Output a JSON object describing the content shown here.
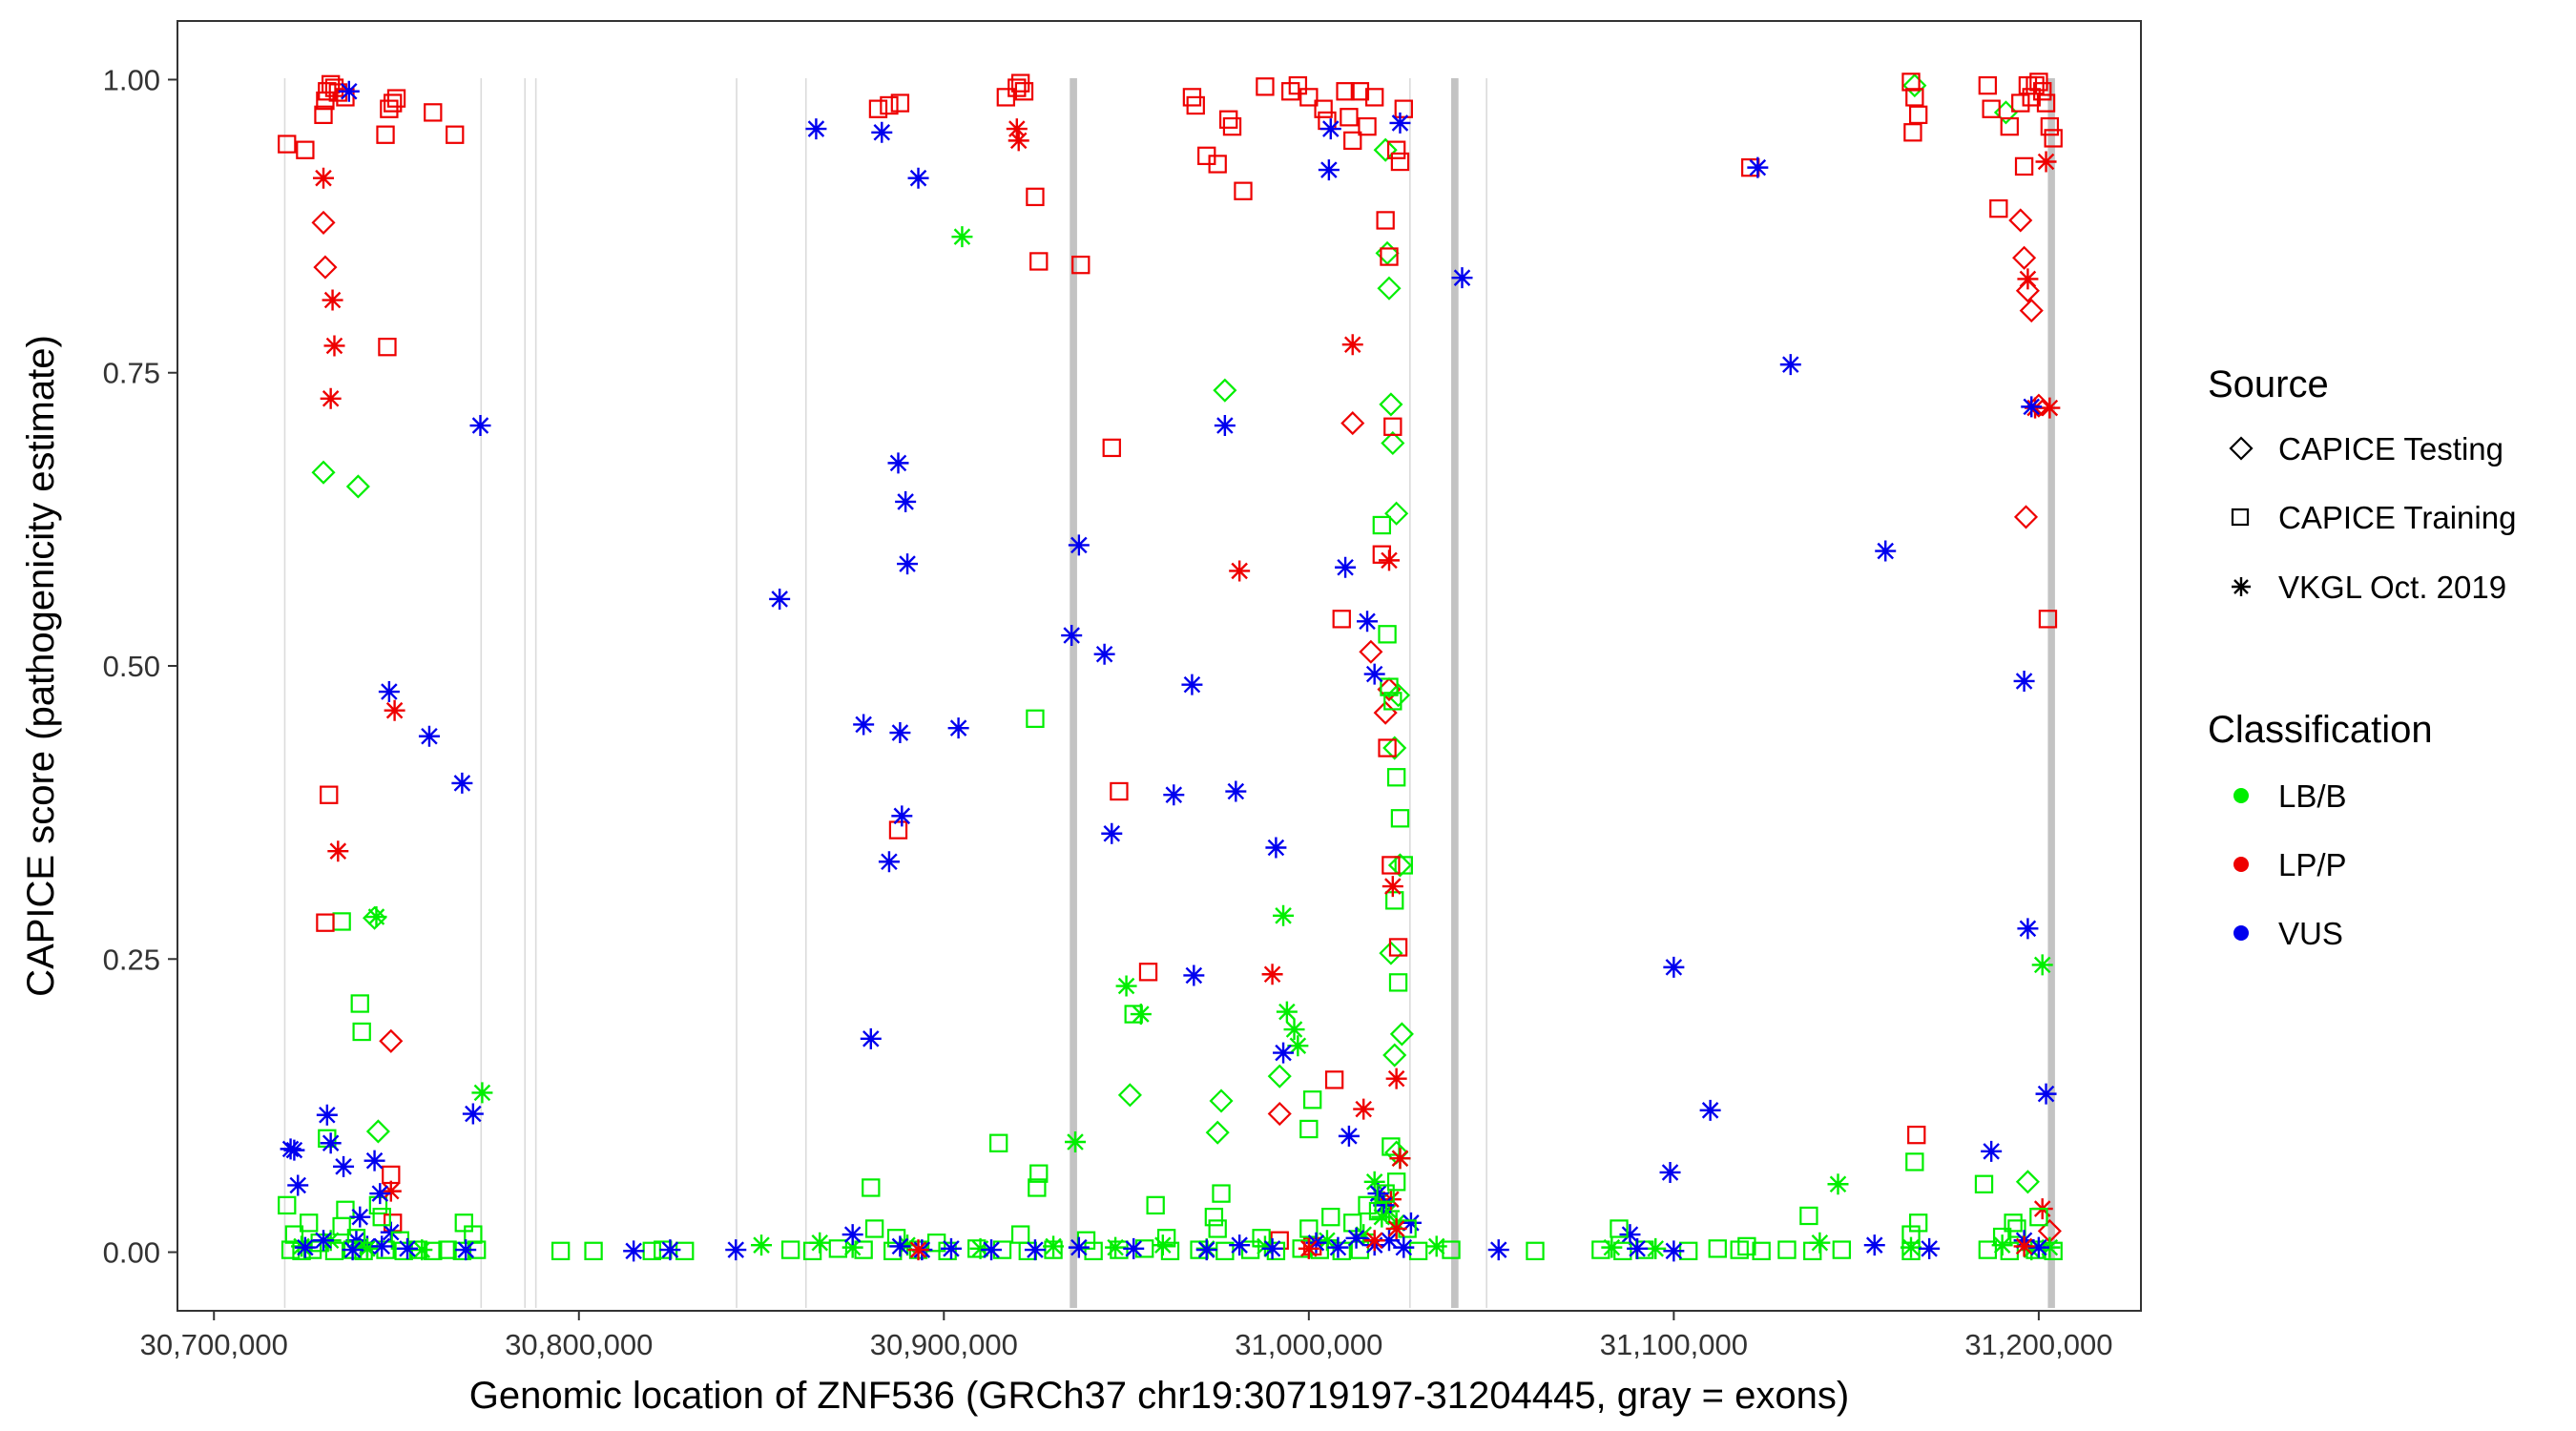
{
  "chart_data": {
    "type": "scatter",
    "title": "",
    "xlabel": "Genomic location of ZNF536 (GRCh37 chr19:30719197-31204445, gray = exons)",
    "ylabel": "CAPICE score (pathogenicity estimate)",
    "xlim": [
      30690000,
      31228000
    ],
    "ylim": [
      -0.05,
      1.05
    ],
    "grid": false,
    "x_ticks": [
      30700000,
      30800000,
      30900000,
      31000000,
      31100000,
      31200000
    ],
    "x_tick_labels": [
      "30,700,000",
      "30,800,000",
      "30,900,000",
      "31,000,000",
      "31,100,000",
      "31,200,000"
    ],
    "y_ticks": [
      0,
      0.25,
      0.5,
      0.75,
      1.0
    ],
    "y_tick_labels": [
      "0.00",
      "0.25",
      "0.50",
      "0.75",
      "1.00"
    ],
    "exons": [
      {
        "start": 30719197,
        "end": 30719300
      },
      {
        "start": 30773000,
        "end": 30773100
      },
      {
        "start": 30785000,
        "end": 30785100
      },
      {
        "start": 30788000,
        "end": 30788100
      },
      {
        "start": 30843000,
        "end": 30843100
      },
      {
        "start": 30862000,
        "end": 30862100
      },
      {
        "start": 30934500,
        "end": 30936500
      },
      {
        "start": 31027500,
        "end": 31027700
      },
      {
        "start": 31039000,
        "end": 31041000
      },
      {
        "start": 31048500,
        "end": 31048700
      },
      {
        "start": 31202500,
        "end": 31204445
      }
    ],
    "legend": {
      "source": {
        "title": "Source",
        "items": [
          {
            "label": "CAPICE Testing",
            "shape": "diamond"
          },
          {
            "label": "CAPICE Training",
            "shape": "square"
          },
          {
            "label": "VKGL Oct. 2019",
            "shape": "asterisk"
          }
        ]
      },
      "classification": {
        "title": "Classification",
        "items": [
          {
            "label": "LB/B",
            "color": "#00ee00"
          },
          {
            "label": "LP/P",
            "color": "#ee0000"
          },
          {
            "label": "VUS",
            "color": "#0000ee"
          }
        ]
      }
    },
    "series": [
      {
        "name": "CAPICE Testing / LB/B",
        "shape": "diamond",
        "color": "#00ee00",
        "x": [
          30730000,
          30739500,
          30744000,
          30745000,
          30951000,
          30975000,
          30976000,
          30977000,
          30992000,
          31021500,
          31022000,
          31022500,
          31023000,
          31024000,
          31024500,
          31025000,
          31025500,
          31023500,
          31166000,
          31191000,
          31021000,
          31022500,
          31024000,
          31197000,
          31023500
        ],
        "y": [
          0.665,
          0.653,
          0.285,
          0.103,
          0.134,
          0.102,
          0.129,
          0.735,
          0.15,
          0.852,
          0.822,
          0.723,
          0.69,
          0.63,
          0.475,
          0.33,
          0.186,
          0.168,
          0.995,
          0.972,
          0.94,
          0.255,
          0.085,
          0.06,
          0.43
        ]
      },
      {
        "name": "CAPICE Testing / LP/P",
        "shape": "diamond",
        "color": "#ee0000",
        "x": [
          30730000,
          30730500,
          30748500,
          30992000,
          31012000,
          31017000,
          31021000,
          31022000,
          31195000,
          31196000,
          31197000,
          31198000,
          31196500,
          31200000,
          31203000
        ],
        "y": [
          0.878,
          0.84,
          0.18,
          0.118,
          0.707,
          0.512,
          0.46,
          0.48,
          0.88,
          0.848,
          0.82,
          0.803,
          0.627,
          0.722,
          0.018
        ]
      },
      {
        "name": "CAPICE Training / LB/B",
        "shape": "square",
        "color": "#00ee00",
        "x": [
          30720000,
          30731000,
          30735000,
          30740000,
          30740500,
          30736000,
          30745000,
          30768500,
          30771000,
          30880000,
          30915000,
          30925000,
          30926000,
          30925500,
          30952000,
          30958000,
          30976000,
          30975000,
          31000000,
          31001000,
          31020000,
          31021500,
          31022000,
          31023000,
          31024000,
          31025000,
          31026000,
          31137000,
          31166000,
          31167000,
          31185000,
          31190000,
          31193000,
          31024500,
          31023500,
          31022500
        ],
        "y": [
          0.04,
          0.097,
          0.282,
          0.212,
          0.188,
          0.036,
          0.04,
          0.025,
          0.015,
          0.055,
          0.093,
          0.455,
          0.067,
          0.055,
          0.203,
          0.04,
          0.05,
          0.02,
          0.105,
          0.13,
          0.62,
          0.527,
          0.482,
          0.47,
          0.405,
          0.37,
          0.33,
          0.031,
          0.077,
          0.025,
          0.058,
          0.013,
          0.025,
          0.23,
          0.3,
          0.09
        ]
      },
      {
        "name": "CAPICE Training / LP/P",
        "shape": "square",
        "color": "#ee0000",
        "x": [
          30720000,
          30725000,
          30730000,
          30730500,
          30731000,
          30732000,
          30733000,
          30734000,
          30736000,
          30747000,
          30748000,
          30749000,
          30750000,
          30760000,
          30766000,
          30747500,
          30730500,
          30731500,
          30748500,
          30882000,
          30885000,
          30888000,
          30917000,
          30920000,
          30921000,
          30922000,
          30925000,
          30926000,
          30937500,
          30946000,
          30948000,
          30956000,
          30968000,
          30969000,
          30972000,
          30975000,
          30978000,
          30979000,
          30982000,
          30988000,
          30995000,
          30997000,
          31000000,
          31004000,
          31005000,
          31010000,
          31011000,
          31012000,
          31014000,
          31016000,
          31018000,
          31021000,
          31022000,
          31023000,
          31024000,
          31025000,
          31026000,
          31009000,
          31020000,
          31021500,
          31022500,
          31024500,
          31007000,
          31121000,
          31165000,
          31166000,
          31167000,
          31186000,
          31187000,
          31189000,
          31192000,
          31195000,
          31197000,
          31198000,
          31199000,
          31200000,
          31201000,
          31202000,
          31203000,
          31204000,
          31196000,
          31202500,
          31165500,
          30887500,
          30992000,
          30749000,
          31166500,
          31001000
        ],
        "y": [
          0.945,
          0.94,
          0.97,
          0.982,
          0.99,
          0.996,
          0.993,
          0.989,
          0.985,
          0.953,
          0.975,
          0.98,
          0.984,
          0.972,
          0.953,
          0.772,
          0.281,
          0.39,
          0.066,
          0.975,
          0.978,
          0.98,
          0.985,
          0.993,
          0.997,
          0.99,
          0.9,
          0.845,
          0.842,
          0.686,
          0.393,
          0.239,
          0.985,
          0.978,
          0.935,
          0.928,
          0.966,
          0.96,
          0.905,
          0.994,
          0.99,
          0.995,
          0.985,
          0.975,
          0.965,
          0.99,
          0.968,
          0.948,
          0.99,
          0.96,
          0.985,
          0.88,
          0.849,
          0.704,
          0.94,
          0.93,
          0.975,
          0.54,
          0.595,
          0.43,
          0.33,
          0.26,
          0.147,
          0.925,
          0.998,
          0.985,
          0.97,
          0.995,
          0.975,
          0.89,
          0.96,
          0.98,
          0.995,
          0.985,
          0.995,
          0.998,
          0.99,
          0.98,
          0.96,
          0.95,
          0.926,
          0.54,
          0.955,
          0.36,
          0.01,
          0.025,
          0.1,
          0.005
        ]
      },
      {
        "name": "VKGL Oct. 2019 / LB/B",
        "shape": "asterisk",
        "color": "#00ee00",
        "x": [
          30744500,
          30773500,
          30850000,
          30905000,
          30936000,
          30950000,
          30954000,
          30993000,
          30994000,
          30996000,
          30997000,
          31145000,
          31201000,
          31018000,
          31020000,
          31022000,
          31024000,
          31025000
        ],
        "y": [
          0.286,
          0.136,
          0.006,
          0.866,
          0.094,
          0.227,
          0.203,
          0.287,
          0.205,
          0.19,
          0.176,
          0.058,
          0.245,
          0.06,
          0.045,
          0.035,
          0.025,
          0.08
        ]
      },
      {
        "name": "VKGL Oct. 2019 / LP/P",
        "shape": "asterisk",
        "color": "#ee0000",
        "x": [
          30730000,
          30732500,
          30733000,
          30732000,
          30734000,
          30748500,
          30749500,
          30920000,
          30920500,
          30981000,
          30990000,
          31012000,
          31015000,
          31022000,
          31023000,
          31024000,
          31025000,
          31197000,
          31199000,
          31203000,
          31202000,
          31201000,
          31022500
        ],
        "y": [
          0.916,
          0.812,
          0.773,
          0.728,
          0.342,
          0.052,
          0.462,
          0.958,
          0.948,
          0.581,
          0.237,
          0.774,
          0.122,
          0.59,
          0.312,
          0.148,
          0.08,
          0.83,
          0.72,
          0.72,
          0.93,
          0.037,
          0.045
        ]
      },
      {
        "name": "VKGL Oct. 2019 / VUS",
        "shape": "asterisk",
        "color": "#0000ee",
        "x": [
          30721000,
          30722000,
          30723000,
          30731000,
          30732000,
          30737000,
          30748000,
          30759000,
          30768000,
          30773000,
          30771000,
          30748500,
          30735500,
          30744000,
          30745500,
          30739000,
          30740000,
          30742000,
          30855000,
          30865000,
          30878000,
          30883000,
          30887500,
          30888000,
          30889500,
          30890000,
          30893000,
          30904000,
          30935000,
          30937000,
          30944000,
          30946000,
          30963000,
          30968000,
          30968500,
          30977000,
          30980000,
          30991000,
          30993000,
          31005500,
          31010000,
          31016000,
          31018000,
          31025000,
          31042000,
          31100000,
          31110000,
          31123000,
          31132000,
          31158000,
          31187000,
          31196000,
          31197000,
          31198000,
          31202000,
          30880000,
          30885000,
          30888500,
          31006000,
          31011000,
          31019000,
          31020500,
          31028000,
          31099000,
          31088000
        ],
        "y": [
          0.088,
          0.087,
          0.057,
          0.117,
          0.093,
          0.99,
          0.478,
          0.44,
          0.4,
          0.705,
          0.118,
          0.017,
          0.073,
          0.078,
          0.05,
          0.01,
          0.03,
          0.005,
          0.557,
          0.958,
          0.45,
          0.955,
          0.673,
          0.443,
          0.64,
          0.587,
          0.916,
          0.447,
          0.526,
          0.603,
          0.51,
          0.357,
          0.39,
          0.484,
          0.236,
          0.705,
          0.393,
          0.345,
          0.17,
          0.923,
          0.584,
          0.538,
          0.493,
          0.963,
          0.831,
          0.243,
          0.121,
          0.925,
          0.757,
          0.598,
          0.086,
          0.487,
          0.276,
          0.721,
          0.135,
          0.182,
          0.333,
          0.372,
          0.958,
          0.099,
          0.05,
          0.04,
          0.025,
          0.068,
          0.015
        ]
      },
      {
        "name": "CAPICE Training / LB/B (near zero)",
        "shape": "square",
        "color": "#00ee00",
        "x": [
          30721000,
          30724000,
          30727000,
          30733000,
          30738000,
          30741000,
          30747000,
          30752000,
          30756000,
          30760000,
          30764000,
          30768000,
          30772000,
          30795000,
          30804000,
          30820000,
          30823000,
          30829000,
          30858000,
          30864000,
          30871000,
          30878000,
          30886000,
          30893000,
          30901000,
          30909000,
          30916000,
          30923000,
          30930000,
          30941000,
          30948000,
          30955000,
          30962000,
          30970000,
          30977000,
          30984000,
          30991000,
          30998000,
          31003000,
          31009000,
          31014000,
          31030000,
          31039000,
          31062000,
          31080000,
          31086000,
          31092000,
          31104000,
          31112000,
          31118000,
          31124000,
          31131000,
          31138000,
          31146000,
          31165000,
          31186000,
          31192000,
          31199000,
          31204000
        ],
        "y": [
          0.002,
          0.001,
          0.002,
          0.001,
          0.002,
          0.001,
          0.002,
          0.001,
          0.002,
          0.001,
          0.002,
          0.001,
          0.002,
          0.001,
          0.001,
          0.001,
          0.002,
          0.001,
          0.002,
          0.001,
          0.003,
          0.002,
          0.001,
          0.002,
          0.001,
          0.003,
          0.002,
          0.001,
          0.002,
          0.001,
          0.002,
          0.003,
          0.001,
          0.002,
          0.001,
          0.002,
          0.001,
          0.003,
          0.002,
          0.001,
          0.002,
          0.001,
          0.002,
          0.001,
          0.002,
          0.001,
          0.002,
          0.001,
          0.003,
          0.002,
          0.001,
          0.002,
          0.001,
          0.002,
          0.001,
          0.002,
          0.001,
          0.002,
          0.001
        ]
      },
      {
        "name": "CAPICE Training / LB/B (low)",
        "shape": "square",
        "color": "#00ee00",
        "x": [
          30722000,
          30726000,
          30729000,
          30735000,
          30739000,
          30746000,
          30751000,
          30881000,
          30887000,
          30898000,
          30921000,
          30939000,
          30961000,
          30974000,
          30987000,
          31000000,
          31006000,
          31012000,
          31016000,
          31019000,
          31021000,
          31024000,
          31027000,
          31085000,
          31120000,
          31165000,
          31194000,
          31200000
        ],
        "y": [
          0.015,
          0.025,
          0.008,
          0.022,
          0.012,
          0.03,
          0.01,
          0.02,
          0.012,
          0.008,
          0.015,
          0.01,
          0.012,
          0.03,
          0.012,
          0.02,
          0.03,
          0.025,
          0.04,
          0.035,
          0.05,
          0.06,
          0.02,
          0.02,
          0.005,
          0.015,
          0.02,
          0.03
        ]
      },
      {
        "name": "VKGL Oct. 2019 / LB/B (near zero)",
        "shape": "asterisk",
        "color": "#00ee00",
        "x": [
          30724000,
          30732000,
          30742000,
          30757000,
          30866000,
          30875000,
          30890000,
          30910000,
          30930000,
          30947000,
          30960000,
          30972000,
          30988000,
          31005000,
          31015000,
          31020000,
          31035000,
          31083000,
          31095000,
          31140000,
          31165000,
          31190000,
          31198000,
          31203000
        ],
        "y": [
          0.005,
          0.01,
          0.003,
          0.002,
          0.008,
          0.004,
          0.006,
          0.003,
          0.005,
          0.004,
          0.006,
          0.003,
          0.005,
          0.01,
          0.015,
          0.03,
          0.005,
          0.004,
          0.003,
          0.008,
          0.004,
          0.006,
          0.002,
          0.004
        ]
      },
      {
        "name": "VKGL Oct. 2019 / VUS (near zero)",
        "shape": "asterisk",
        "color": "#0000ee",
        "x": [
          30725000,
          30730000,
          30738000,
          30746000,
          30753000,
          30769000,
          30815000,
          30825000,
          30843000,
          30875000,
          30888000,
          30894000,
          30902000,
          30913000,
          30925000,
          30937000,
          30952000,
          30972000,
          30981000,
          30990000,
          31002000,
          31008000,
          31013000,
          31018000,
          31022000,
          31026000,
          31052000,
          31090000,
          31100000,
          31155000,
          31170000,
          31196000,
          31200000
        ],
        "y": [
          0.004,
          0.01,
          0.002,
          0.005,
          0.003,
          0.002,
          0.001,
          0.002,
          0.002,
          0.015,
          0.005,
          0.002,
          0.003,
          0.002,
          0.002,
          0.004,
          0.003,
          0.002,
          0.006,
          0.003,
          0.008,
          0.004,
          0.012,
          0.006,
          0.01,
          0.004,
          0.002,
          0.003,
          0.001,
          0.006,
          0.003,
          0.01,
          0.004
        ]
      },
      {
        "name": "VKGL Oct. 2019 / LP/P (near zero)",
        "shape": "asterisk",
        "color": "#ee0000",
        "x": [
          30893000,
          31000000,
          31018000,
          31024000,
          31196000
        ],
        "y": [
          0.002,
          0.003,
          0.01,
          0.02,
          0.005
        ]
      }
    ]
  }
}
